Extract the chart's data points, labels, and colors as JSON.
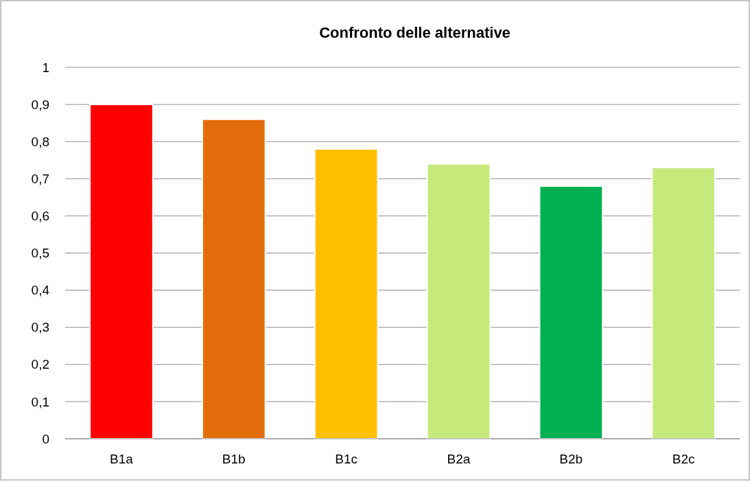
{
  "chart_data": {
    "type": "bar",
    "title": "Confronto delle alternative",
    "categories": [
      "B1a",
      "B1b",
      "B1c",
      "B2a",
      "B2b",
      "B2c"
    ],
    "values": [
      0.9,
      0.86,
      0.78,
      0.74,
      0.68,
      0.73
    ],
    "colors": [
      "#ff0000",
      "#e36c0a",
      "#ffc000",
      "#c6e97b",
      "#00b050",
      "#c6e97b"
    ],
    "ylim": [
      0,
      1
    ],
    "yticks": [
      0,
      {
        "value": 0.1,
        "label": "0,1"
      },
      {
        "value": 0.2,
        "label": "0,2"
      },
      {
        "value": 0.3,
        "label": "0,3"
      },
      {
        "value": 0.4,
        "label": "0,4"
      },
      {
        "value": 0.5,
        "label": "0,5"
      },
      {
        "value": 0.6,
        "label": "0,6"
      },
      {
        "value": 0.7,
        "label": "0,7"
      },
      {
        "value": 0.8,
        "label": "0,8"
      },
      {
        "value": 0.9,
        "label": "0,9"
      },
      1
    ],
    "grid": "y"
  }
}
